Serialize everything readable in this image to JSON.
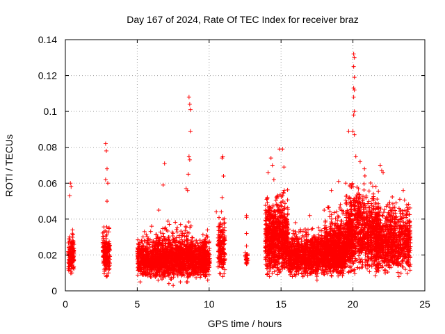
{
  "chart_data": {
    "type": "scatter",
    "title": "Day 167 of 2024, Rate Of TEC Index for receiver braz",
    "xlabel": "GPS time / hours",
    "ylabel": "ROTI / TECUs",
    "xlim": [
      0,
      25
    ],
    "ylim": [
      0,
      0.14
    ],
    "x_ticks": [
      0,
      5,
      10,
      15,
      20,
      25
    ],
    "x_tick_labels": [
      "0",
      "5",
      "10",
      "15",
      "20",
      "25"
    ],
    "y_ticks": [
      0,
      0.02,
      0.04,
      0.06,
      0.08,
      0.1,
      0.12,
      0.14
    ],
    "y_tick_labels": [
      "0",
      "0.02",
      "0.04",
      "0.06",
      "0.08",
      "0.1",
      "0.12",
      "0.14"
    ],
    "grid": true,
    "marker": "+",
    "colors": {
      "points": "#ff0000",
      "axes": "#000000",
      "grid": "#a0a0a0"
    },
    "series": [
      {
        "name": "ROTI",
        "points": [
          [
            0.3,
            0.053
          ],
          [
            0.4,
            0.058
          ],
          [
            0.35,
            0.06
          ],
          [
            0.5,
            0.034
          ],
          [
            0.3,
            0.012
          ],
          [
            0.45,
            0.01
          ],
          [
            2.8,
            0.082
          ],
          [
            2.85,
            0.078
          ],
          [
            2.9,
            0.068
          ],
          [
            2.8,
            0.062
          ],
          [
            2.95,
            0.06
          ],
          [
            2.9,
            0.05
          ],
          [
            2.85,
            0.008
          ],
          [
            3.0,
            0.01
          ],
          [
            5.2,
            0.005
          ],
          [
            5.5,
            0.033
          ],
          [
            6.0,
            0.036
          ],
          [
            6.5,
            0.045
          ],
          [
            6.9,
            0.071
          ],
          [
            6.8,
            0.059
          ],
          [
            7.2,
            0.004
          ],
          [
            7.5,
            0.003
          ],
          [
            8.0,
            0.005
          ],
          [
            8.4,
            0.057
          ],
          [
            8.5,
            0.056
          ],
          [
            8.6,
            0.108
          ],
          [
            8.65,
            0.104
          ],
          [
            8.7,
            0.101
          ],
          [
            8.7,
            0.089
          ],
          [
            8.6,
            0.075
          ],
          [
            8.65,
            0.073
          ],
          [
            8.55,
            0.065
          ],
          [
            8.5,
            0.005
          ],
          [
            9.8,
            0.031
          ],
          [
            9.9,
            0.006
          ],
          [
            10.5,
            0.044
          ],
          [
            10.9,
            0.074
          ],
          [
            10.95,
            0.075
          ],
          [
            11.0,
            0.064
          ],
          [
            10.9,
            0.052
          ],
          [
            10.85,
            0.044
          ],
          [
            10.95,
            0.008
          ],
          [
            12.6,
            0.042
          ],
          [
            12.6,
            0.041
          ],
          [
            12.6,
            0.032
          ],
          [
            12.6,
            0.025
          ],
          [
            12.6,
            0.015
          ],
          [
            14.0,
            0.051
          ],
          [
            14.1,
            0.066
          ],
          [
            14.3,
            0.074
          ],
          [
            14.4,
            0.07
          ],
          [
            14.5,
            0.062
          ],
          [
            14.7,
            0.048
          ],
          [
            14.9,
            0.079
          ],
          [
            15.1,
            0.079
          ],
          [
            15.2,
            0.069
          ],
          [
            14.2,
            0.008
          ],
          [
            16.0,
            0.038
          ],
          [
            17.0,
            0.042
          ],
          [
            18.0,
            0.045
          ],
          [
            18.5,
            0.056
          ],
          [
            19.0,
            0.061
          ],
          [
            19.5,
            0.06
          ],
          [
            19.7,
            0.089
          ],
          [
            19.8,
            0.058
          ],
          [
            17.5,
            0.006
          ],
          [
            20.05,
            0.132
          ],
          [
            20.1,
            0.13
          ],
          [
            20.05,
            0.125
          ],
          [
            20.1,
            0.119
          ],
          [
            20.05,
            0.113
          ],
          [
            20.1,
            0.112
          ],
          [
            20.05,
            0.108
          ],
          [
            20.1,
            0.1
          ],
          [
            20.05,
            0.098
          ],
          [
            20.0,
            0.089
          ],
          [
            20.1,
            0.087
          ],
          [
            20.2,
            0.075
          ],
          [
            20.5,
            0.072
          ],
          [
            20.8,
            0.068
          ],
          [
            21.9,
            0.07
          ],
          [
            22.0,
            0.067
          ],
          [
            22.1,
            0.066
          ],
          [
            22.5,
            0.048
          ],
          [
            23.0,
            0.049
          ],
          [
            23.5,
            0.056
          ],
          [
            23.8,
            0.044
          ],
          [
            23.2,
            0.008
          ]
        ],
        "clusters": [
          {
            "x": [
              0.2,
              0.6
            ],
            "y": [
              0.009,
              0.035
            ],
            "n": 150
          },
          {
            "x": [
              2.6,
              3.1
            ],
            "y": [
              0.007,
              0.04
            ],
            "n": 180
          },
          {
            "x": [
              5.0,
              9.8
            ],
            "y": [
              0.006,
              0.034
            ],
            "n": 1600
          },
          {
            "x": [
              6.2,
              8.9
            ],
            "y": [
              0.004,
              0.044
            ],
            "n": 300
          },
          {
            "x": [
              9.6,
              10.05
            ],
            "y": [
              0.006,
              0.036
            ],
            "n": 140
          },
          {
            "x": [
              10.6,
              11.1
            ],
            "y": [
              0.008,
              0.045
            ],
            "n": 170
          },
          {
            "x": [
              12.5,
              12.7
            ],
            "y": [
              0.014,
              0.026
            ],
            "n": 25
          },
          {
            "x": [
              13.9,
              15.5
            ],
            "y": [
              0.008,
              0.06
            ],
            "n": 900
          },
          {
            "x": [
              15.5,
              19.5
            ],
            "y": [
              0.007,
              0.038
            ],
            "n": 1600
          },
          {
            "x": [
              18.0,
              20.0
            ],
            "y": [
              0.009,
              0.055
            ],
            "n": 500
          },
          {
            "x": [
              19.5,
              21.8
            ],
            "y": [
              0.008,
              0.068
            ],
            "n": 900
          },
          {
            "x": [
              21.5,
              24.0
            ],
            "y": [
              0.008,
              0.055
            ],
            "n": 900
          }
        ]
      }
    ]
  }
}
